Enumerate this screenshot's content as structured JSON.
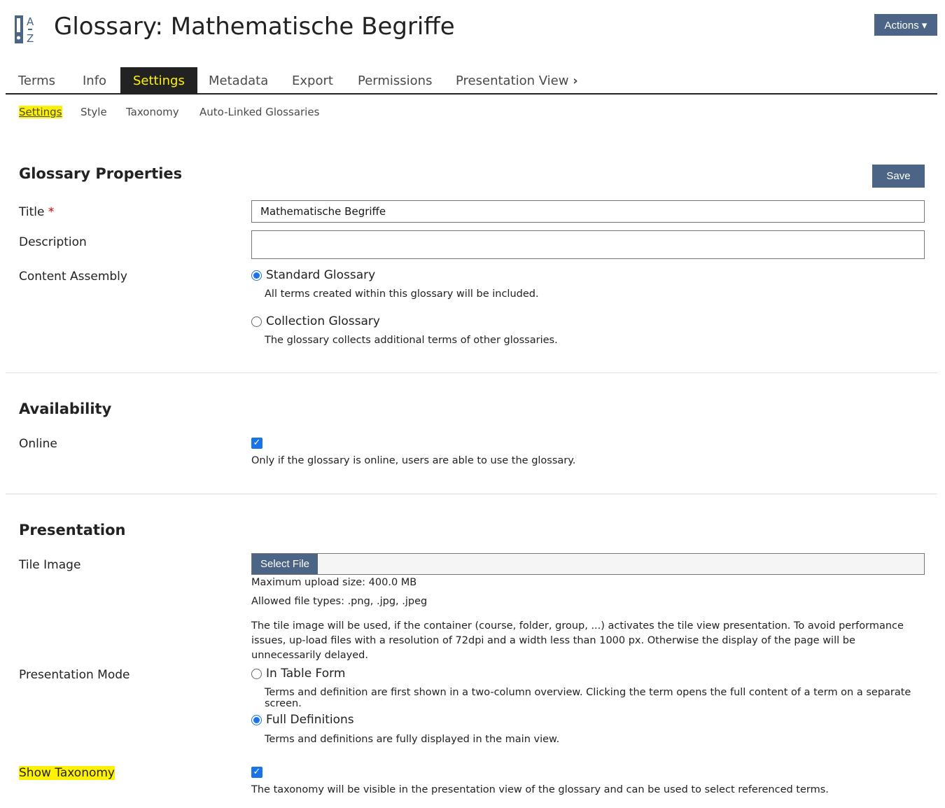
{
  "header": {
    "title": "Glossary: Mathematische Begriffe",
    "actions_label": "Actions ▾",
    "icon": "glossary-az-icon"
  },
  "tabs": [
    {
      "label": "Terms"
    },
    {
      "label": "Info"
    },
    {
      "label": "Settings"
    },
    {
      "label": "Metadata"
    },
    {
      "label": "Export"
    },
    {
      "label": "Permissions"
    },
    {
      "label": "Presentation View"
    }
  ],
  "subtabs": [
    {
      "label": "Settings"
    },
    {
      "label": "Style"
    },
    {
      "label": "Taxonomy"
    },
    {
      "label": "Auto-Linked Glossaries"
    }
  ],
  "properties": {
    "heading": "Glossary Properties",
    "save_label": "Save",
    "title_label": "Title",
    "required_mark": "*",
    "title_value": "Mathematische Begriffe",
    "description_label": "Description",
    "description_value": "",
    "content_assembly_label": "Content Assembly",
    "standard_label": "Standard Glossary",
    "standard_desc": "All terms created within this glossary will be included.",
    "standard_selected": true,
    "collection_label": "Collection Glossary",
    "collection_desc": "The glossary collects additional terms of other glossaries.",
    "collection_selected": false
  },
  "availability": {
    "heading": "Availability",
    "online_label": "Online",
    "online_checked": true,
    "online_desc": "Only if the glossary is online, users are able to use the glossary."
  },
  "presentation": {
    "heading": "Presentation",
    "tile_label": "Tile Image",
    "select_file": "Select File",
    "max_size": "Maximum upload size: 400.0 MB",
    "types": "Allowed file types: .png, .jpg, .jpeg",
    "tile_info": "The tile image will be used, if the container (course, folder, group, ...) activates the tile view presentation. To avoid performance issues, up-load files with a resolution of 72dpi and a width less than 1000 px. Otherwise the display of the page will be unnecessarily delayed.",
    "mode_label": "Presentation Mode",
    "table_label": "In Table Form",
    "table_desc": "Terms and definition are first shown in a two-column overview. Clicking the term opens the full content of a term on a separate screen.",
    "table_selected": false,
    "full_label": "Full Definitions",
    "full_desc": "Terms and definitions are fully displayed in the main view.",
    "full_selected": true,
    "taxonomy_label": "Show Taxonomy",
    "taxonomy_checked": true,
    "taxonomy_desc": "The taxonomy will be visible in the presentation view of the glossary and can be used to select referenced terms."
  },
  "colors": {
    "accent": "#4c6586",
    "highlight": "#fff200",
    "checkbox": "#1a73e8"
  }
}
